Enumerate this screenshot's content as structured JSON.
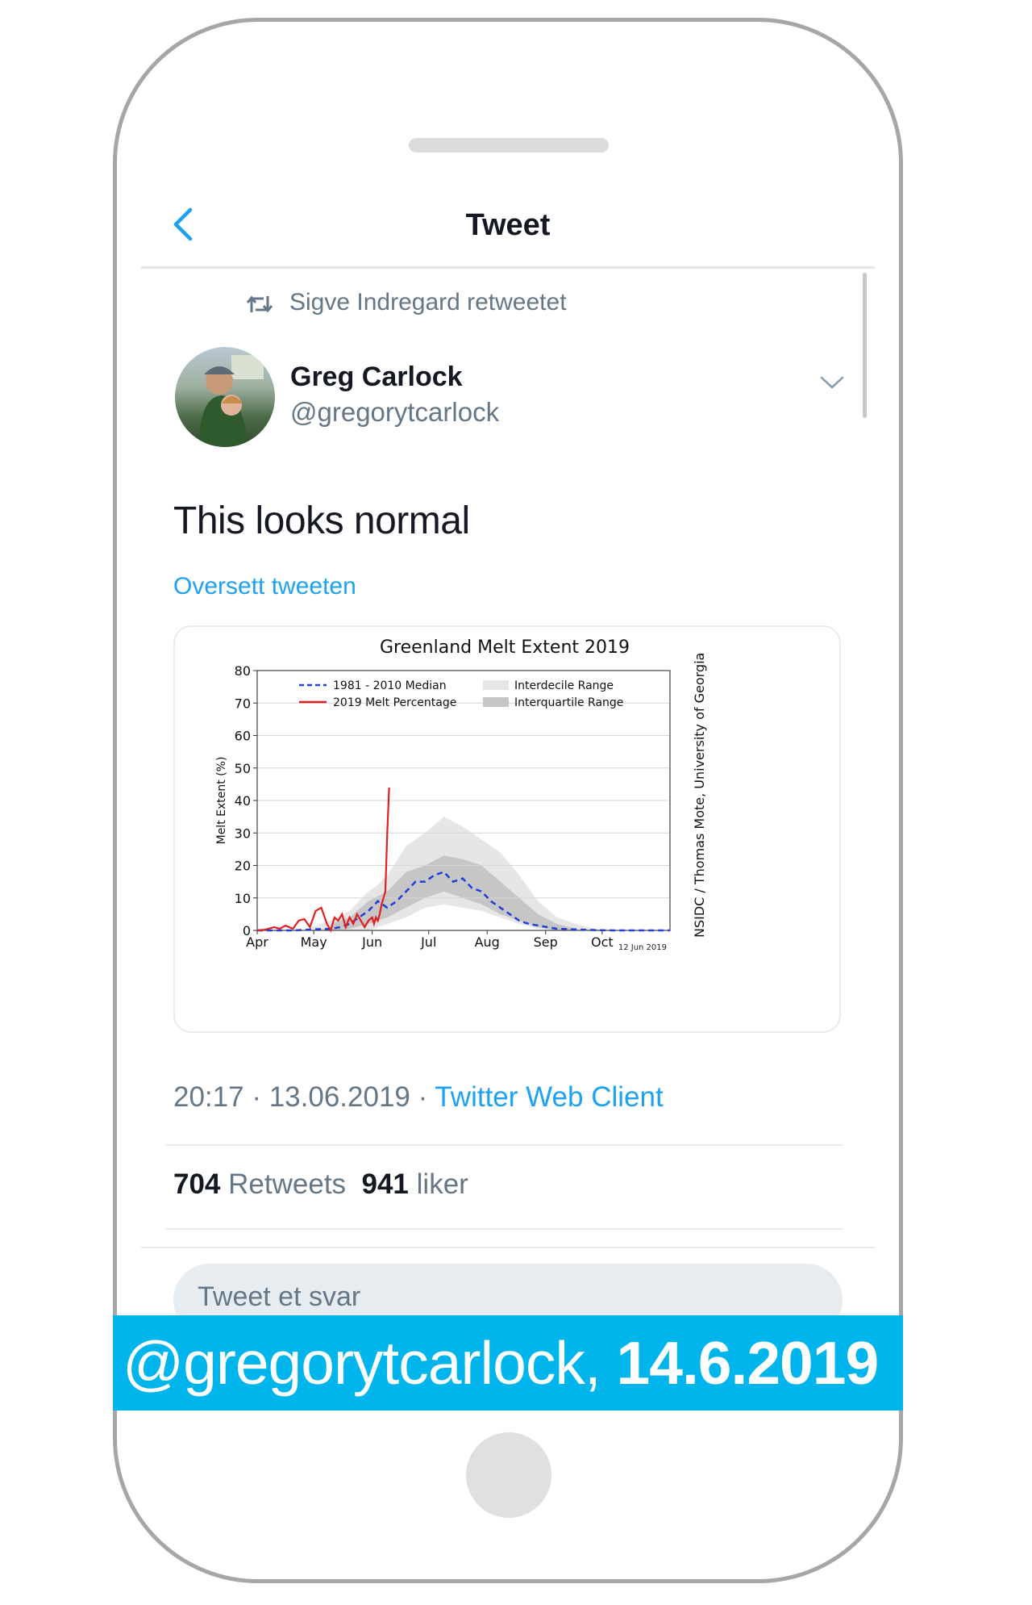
{
  "nav": {
    "title": "Tweet",
    "back_icon": "chevron-left-icon"
  },
  "retweet": {
    "icon": "retweet-icon",
    "text": "Sigve Indregard retweetet"
  },
  "author": {
    "name": "Greg Carlock",
    "handle": "@gregorytcarlock",
    "avatar": "avatar-photo"
  },
  "tweet": {
    "text": "This looks normal",
    "translate_label": "Oversett tweeten",
    "time": "20:17",
    "date": "13.06.2019",
    "separator": " · ",
    "client": "Twitter Web Client"
  },
  "stats": {
    "retweets_count": "704",
    "retweets_label": "Retweets",
    "likes_count": "941",
    "likes_label": "liker"
  },
  "reply": {
    "placeholder": "Tweet et svar"
  },
  "banner": {
    "handle": "@gregorytcarlock,",
    "date": "14.6.2019"
  },
  "colors": {
    "accent": "#1da1f2",
    "banner": "#00b4ec",
    "median_line": "#1f3fd8",
    "melt_line": "#e02020",
    "interdecile": "#e6e6e6",
    "interquartile": "#c6c6c6"
  },
  "chart_data": {
    "type": "line",
    "title": "Greenland Melt Extent 2019",
    "ylabel": "Melt Extent (%)",
    "xlabel": "",
    "ylim": [
      0,
      80
    ],
    "yticks": [
      0,
      10,
      20,
      30,
      40,
      50,
      60,
      70,
      80
    ],
    "xlim": [
      91,
      310
    ],
    "x_ticks": [
      {
        "day": 91,
        "label": "Apr"
      },
      {
        "day": 121,
        "label": "May"
      },
      {
        "day": 152,
        "label": "Jun"
      },
      {
        "day": 182,
        "label": "Jul"
      },
      {
        "day": 213,
        "label": "Aug"
      },
      {
        "day": 244,
        "label": "Sep"
      },
      {
        "day": 274,
        "label": "Oct"
      }
    ],
    "date_note": "12 Jun 2019",
    "credit": "NSIDC / Thomas Mote, University of Georgia",
    "legend": [
      {
        "label": "1981 - 2010 Median",
        "style": "dashed-blue"
      },
      {
        "label": "2019 Melt Percentage",
        "style": "solid-red"
      },
      {
        "label": "Interdecile Range",
        "style": "band-light"
      },
      {
        "label": "Interquartile Range",
        "style": "band-dark"
      }
    ],
    "legend_position": "top",
    "series": [
      {
        "name": "1981 - 2010 Median",
        "x": [
          91,
          100,
          110,
          120,
          130,
          135,
          140,
          145,
          150,
          155,
          160,
          165,
          170,
          175,
          180,
          185,
          190,
          195,
          200,
          205,
          210,
          215,
          220,
          225,
          230,
          235,
          240,
          245,
          250,
          260,
          270,
          280,
          290,
          300,
          310
        ],
        "y": [
          0,
          0,
          0,
          0.3,
          0.5,
          1,
          2,
          4,
          6,
          9,
          7,
          9,
          12,
          15,
          15,
          17,
          18,
          15,
          16,
          13,
          12,
          9,
          7,
          5,
          3,
          2,
          1.5,
          1,
          0.5,
          0.3,
          0.1,
          0,
          0,
          0,
          0
        ]
      },
      {
        "name": "2019 Melt Percentage",
        "x": [
          91,
          95,
          100,
          103,
          106,
          110,
          113,
          116,
          119,
          122,
          125,
          128,
          130,
          132,
          134,
          136,
          138,
          140,
          142,
          144,
          146,
          148,
          150,
          152,
          153,
          154,
          155,
          156,
          157,
          158,
          159,
          160,
          161
        ],
        "y": [
          0,
          0.2,
          1,
          0.5,
          1.5,
          0.5,
          3,
          3.5,
          1,
          6,
          7,
          2,
          0,
          4,
          3,
          5,
          1,
          4,
          2,
          5,
          3,
          1,
          3,
          4,
          2,
          4,
          3,
          5,
          8,
          10,
          12,
          30,
          44
        ]
      }
    ],
    "interdecile_range": {
      "x": [
        120,
        130,
        140,
        150,
        155,
        160,
        170,
        180,
        190,
        200,
        210,
        220,
        230,
        240,
        250,
        260,
        270,
        280
      ],
      "lower": [
        0,
        0,
        0,
        0,
        1,
        2,
        4,
        7,
        8,
        7,
        6,
        4,
        2,
        0.5,
        0,
        0,
        0,
        0
      ],
      "upper": [
        1,
        3,
        6,
        12,
        14,
        17,
        26,
        30,
        35,
        32,
        28,
        24,
        17,
        9,
        4,
        2,
        0.5,
        0
      ]
    },
    "interquartile_range": {
      "x": [
        130,
        140,
        150,
        160,
        170,
        180,
        190,
        200,
        210,
        220,
        230,
        240,
        250,
        260
      ],
      "lower": [
        0,
        0.5,
        2,
        4,
        7,
        10,
        12,
        10,
        8,
        5,
        3,
        1,
        0,
        0
      ],
      "upper": [
        2,
        4,
        9,
        12,
        18,
        20,
        23,
        22,
        20,
        15,
        10,
        5,
        2,
        0.5
      ]
    }
  }
}
